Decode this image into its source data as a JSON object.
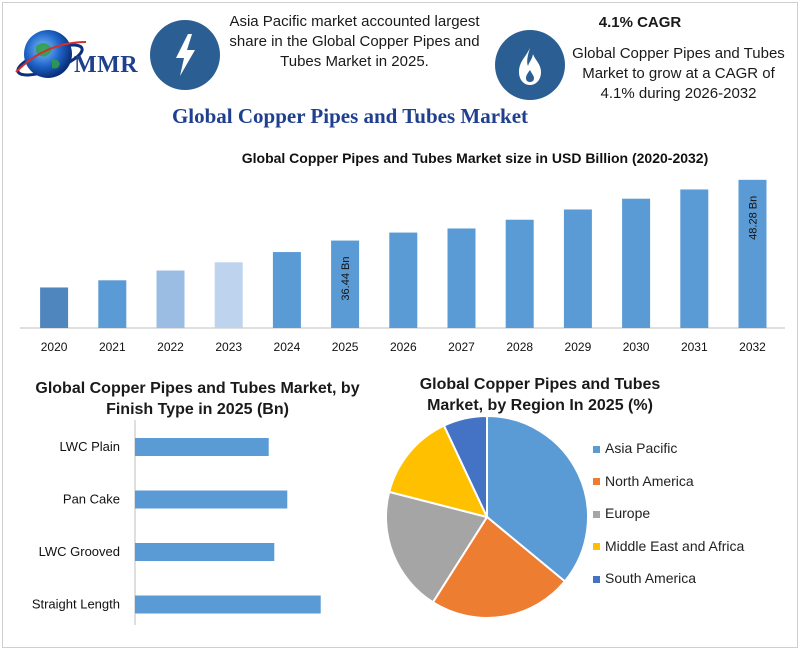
{
  "header": {
    "logo_text": "MMR",
    "left_note": "Asia Pacific market accounted largest share in the Global Copper Pipes and Tubes Market in 2025.",
    "cagr_title": "4.1% CAGR",
    "cagr_note": "Global Copper Pipes and Tubes Market to grow at a CAGR of 4.1% during 2026-2032",
    "icons": [
      "globe-icon",
      "lightning-icon",
      "flame-icon"
    ]
  },
  "main_title": "Global Copper Pipes and Tubes Market",
  "chart_data": [
    {
      "type": "bar",
      "title": "Global Copper Pipes and Tubes Market size in USD Billion (2020-2032)",
      "categories": [
        "2020",
        "2021",
        "2022",
        "2023",
        "2024",
        "2025",
        "2026",
        "2027",
        "2028",
        "2029",
        "2030",
        "2031",
        "2032"
      ],
      "values": [
        27.3,
        28.7,
        30.6,
        32.2,
        34.2,
        36.44,
        38.0,
        38.8,
        40.5,
        42.5,
        44.6,
        46.4,
        48.28
      ],
      "bar_colors": [
        "#4f86bd",
        "#5b9bd5",
        "#9bbce3",
        "#bdd3ee",
        "#5b9bd5",
        "#5b9bd5",
        "#5b9bd5",
        "#5b9bd5",
        "#5b9bd5",
        "#5b9bd5",
        "#5b9bd5",
        "#5b9bd5",
        "#5b9bd5"
      ],
      "data_labels": {
        "2025": "36.44 Bn",
        "2032": "48.28 Bn"
      },
      "ylim": [
        0,
        50
      ],
      "axis_baseline_value": 19.4,
      "grid": false
    },
    {
      "type": "bar",
      "orientation": "horizontal",
      "title": "Global Copper Pipes and Tubes Market, by Finish Type in 2025 (Bn)",
      "categories": [
        "LWC Plain",
        "Pan Cake",
        "LWC Grooved",
        "Straight Length"
      ],
      "values": [
        7.2,
        8.2,
        7.5,
        10.0
      ],
      "xlim": [
        0,
        10.5
      ],
      "color": "#5b9bd5"
    },
    {
      "type": "pie",
      "title": "Global Copper Pipes and Tubes Market, by Region In 2025 (%)",
      "labels": [
        "Asia Pacific",
        "North America",
        "Europe",
        "Middle East and Africa",
        "South America"
      ],
      "values": [
        36,
        23,
        20,
        14,
        7
      ],
      "colors": [
        "#5b9bd5",
        "#ed7d31",
        "#a5a5a5",
        "#ffc000",
        "#4472c4"
      ],
      "legend": "right"
    }
  ]
}
